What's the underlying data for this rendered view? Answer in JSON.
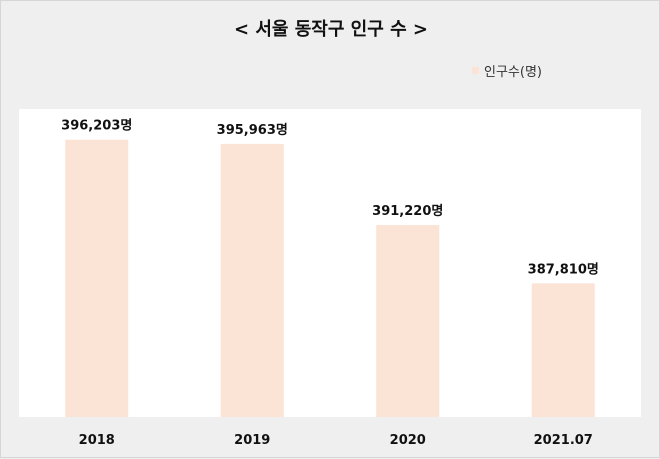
{
  "chart_data": {
    "type": "bar",
    "title": "< 서울 동작구 인구 수 >",
    "categories": [
      "2018",
      "2019",
      "2020",
      "2021.07"
    ],
    "series": [
      {
        "name": "인구수(명)",
        "values": [
          396203,
          395963,
          391220,
          387810
        ]
      }
    ],
    "data_labels": [
      "396,203명",
      "395,963명",
      "391,220명",
      "387,810명"
    ],
    "ylim": [
      380000,
      398000
    ],
    "grid": false,
    "legend_position": "top-right",
    "colors": {
      "bar": "#fbe4d6",
      "plot_bg": "#ffffff",
      "outer_bg": "#efefef"
    }
  }
}
